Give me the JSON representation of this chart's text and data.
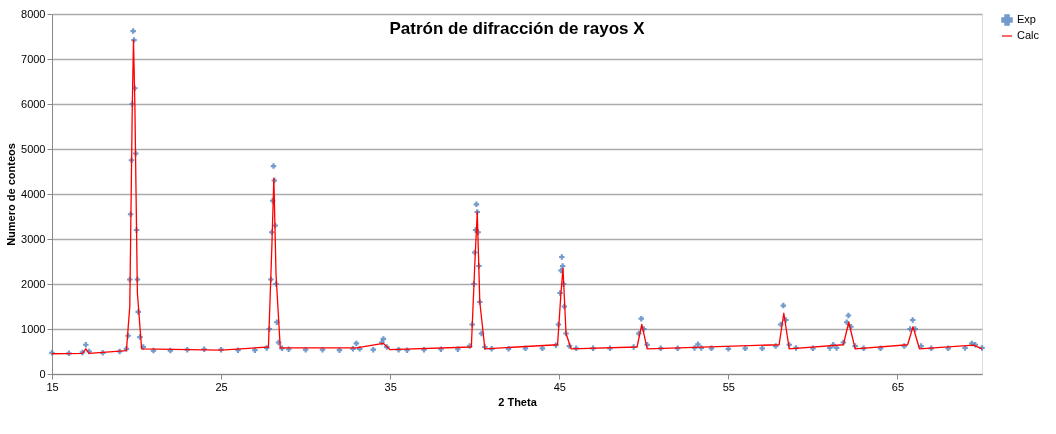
{
  "chart_data": {
    "type": "scatter",
    "title": "Patrón de difracción de rayos X",
    "xlabel": "2 Theta",
    "ylabel": "Numero de conteos",
    "xlim": [
      15,
      70
    ],
    "xticks": [
      15,
      25,
      35,
      45,
      55,
      65
    ],
    "ylim": [
      0,
      8000
    ],
    "yticks": [
      0,
      1000,
      2000,
      3000,
      4000,
      5000,
      6000,
      7000,
      8000
    ],
    "grid": "y",
    "legend": "right",
    "series": [
      {
        "name": "Exp",
        "marker": "cross",
        "color": "#4f81bd",
        "x": [
          15,
          16,
          16.8,
          17.0,
          17.2,
          18,
          19,
          19.4,
          19.5,
          19.6,
          19.65,
          19.7,
          19.75,
          19.8,
          19.85,
          19.9,
          19.95,
          20.0,
          20.05,
          20.1,
          20.2,
          20.4,
          21,
          22,
          23,
          24,
          25,
          26,
          27,
          27.7,
          27.85,
          27.95,
          28.0,
          28.05,
          28.1,
          28.15,
          28.2,
          28.25,
          28.3,
          28.4,
          28.6,
          29,
          30,
          31,
          32,
          32.8,
          33.0,
          33.2,
          34,
          34.5,
          34.6,
          34.8,
          35.5,
          36,
          37,
          38,
          39,
          39.7,
          39.85,
          39.95,
          40.0,
          40.05,
          40.1,
          40.15,
          40.2,
          40.25,
          40.3,
          40.4,
          40.6,
          41,
          42,
          43,
          44,
          44.8,
          44.95,
          45.05,
          45.1,
          45.15,
          45.2,
          45.25,
          45.3,
          45.4,
          45.6,
          46,
          47,
          48,
          49.4,
          49.7,
          49.85,
          50.0,
          50.2,
          51,
          52,
          53.0,
          53.2,
          53.4,
          54,
          55,
          56,
          57,
          57.8,
          58.1,
          58.25,
          58.4,
          58.6,
          59,
          60,
          61,
          61.2,
          61.4,
          61.8,
          62.0,
          62.1,
          62.25,
          62.5,
          63,
          64,
          65.4,
          65.75,
          65.9,
          66.05,
          66.4,
          67,
          68,
          69,
          69.4,
          69.6,
          70
        ],
        "values": [
          470,
          460,
          480,
          650,
          500,
          470,
          500,
          560,
          850,
          2100,
          3550,
          4750,
          6000,
          7620,
          7420,
          6350,
          4900,
          3200,
          2100,
          1380,
          820,
          600,
          520,
          520,
          540,
          550,
          540,
          530,
          530,
          580,
          1000,
          2100,
          3150,
          3850,
          4620,
          4300,
          3300,
          2000,
          1150,
          700,
          570,
          550,
          540,
          540,
          530,
          560,
          680,
          560,
          540,
          700,
          780,
          600,
          540,
          530,
          540,
          550,
          550,
          620,
          1100,
          2000,
          2700,
          3200,
          3770,
          3600,
          3150,
          2400,
          1600,
          900,
          600,
          560,
          560,
          570,
          570,
          640,
          1100,
          1800,
          2300,
          2600,
          2400,
          2000,
          1500,
          900,
          620,
          570,
          570,
          570,
          600,
          900,
          1230,
          1000,
          650,
          570,
          570,
          580,
          660,
          580,
          570,
          560,
          570,
          570,
          620,
          1100,
          1520,
          1200,
          650,
          580,
          570,
          580,
          650,
          580,
          700,
          1150,
          1300,
          1050,
          620,
          570,
          570,
          620,
          1000,
          1200,
          1000,
          620,
          570,
          570,
          580,
          680,
          650,
          580
        ]
      },
      {
        "name": "Calc",
        "type": "line",
        "marker": "none",
        "line_style": "solid",
        "color": "#ff0000",
        "x": [
          15,
          16.8,
          17.0,
          17.2,
          19.4,
          19.6,
          19.75,
          19.82,
          19.9,
          20.05,
          20.3,
          25,
          27.8,
          28.0,
          28.12,
          28.25,
          28.5,
          33,
          34.6,
          35,
          39.8,
          40.0,
          40.15,
          40.3,
          40.6,
          44.9,
          45.1,
          45.22,
          45.4,
          45.7,
          49.6,
          49.88,
          50.2,
          58.0,
          58.28,
          58.6,
          61.8,
          62.12,
          62.5,
          65.6,
          65.92,
          66.3,
          69.5,
          70
        ],
        "values": [
          450,
          460,
          560,
          460,
          520,
          1500,
          6000,
          7420,
          6000,
          1800,
          560,
          530,
          600,
          2800,
          4350,
          2200,
          580,
          580,
          680,
          540,
          600,
          2400,
          3600,
          1600,
          560,
          650,
          1800,
          2350,
          900,
          560,
          600,
          1100,
          560,
          650,
          1350,
          560,
          650,
          1150,
          560,
          650,
          1050,
          560,
          640,
          560
        ]
      }
    ]
  }
}
